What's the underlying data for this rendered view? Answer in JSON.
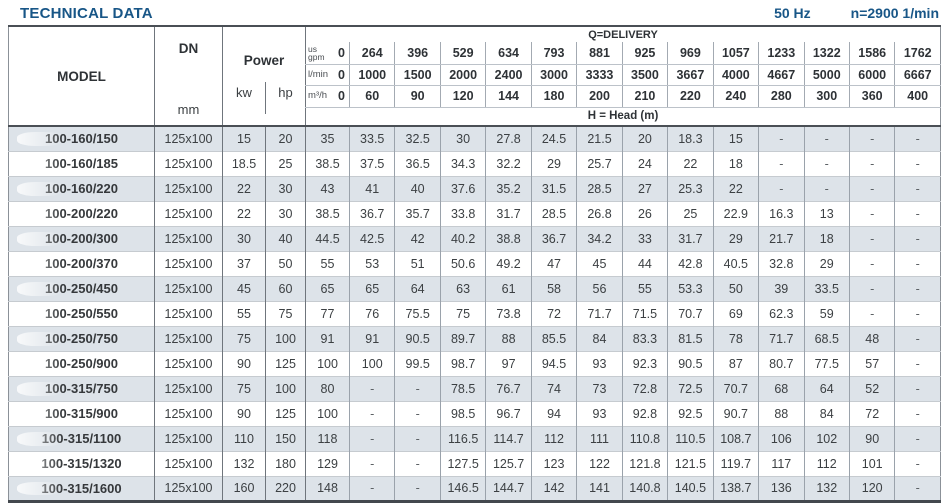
{
  "page": {
    "title": "TECHNICAL DATA",
    "frequency": "50 Hz",
    "speed": "n=2900 1/min"
  },
  "colors": {
    "accent": "#185687",
    "stripe": "#dde3e9"
  },
  "table": {
    "model_header": "MODEL",
    "dn_header": "DN",
    "dn_unit": "mm",
    "power_header": "Power",
    "power_kw": "kw",
    "power_hp": "hp",
    "delivery_caption": "Q=DELIVERY",
    "head_caption": "H = Head (m)",
    "unit_rows": [
      {
        "label": "us\ngpm",
        "values": [
          "0",
          "264",
          "396",
          "529",
          "634",
          "793",
          "881",
          "925",
          "969",
          "1057",
          "1233",
          "1322",
          "1586",
          "1762"
        ]
      },
      {
        "label": "l/min",
        "values": [
          "0",
          "1000",
          "1500",
          "2000",
          "2400",
          "3000",
          "3333",
          "3500",
          "3667",
          "4000",
          "4667",
          "5000",
          "6000",
          "6667"
        ]
      },
      {
        "label": "m³/h",
        "values": [
          "0",
          "60",
          "90",
          "120",
          "144",
          "180",
          "200",
          "210",
          "220",
          "240",
          "280",
          "300",
          "360",
          "400"
        ]
      }
    ],
    "rows": [
      {
        "model": "100-160/150",
        "dn": "125x100",
        "kw": "15",
        "hp": "20",
        "head": [
          "35",
          "33.5",
          "32.5",
          "30",
          "27.8",
          "24.5",
          "21.5",
          "20",
          "18.3",
          "15",
          "-",
          "-",
          "-",
          "-"
        ]
      },
      {
        "model": "100-160/185",
        "dn": "125x100",
        "kw": "18.5",
        "hp": "25",
        "head": [
          "38.5",
          "37.5",
          "36.5",
          "34.3",
          "32.2",
          "29",
          "25.7",
          "24",
          "22",
          "18",
          "-",
          "-",
          "-",
          "-"
        ]
      },
      {
        "model": "100-160/220",
        "dn": "125x100",
        "kw": "22",
        "hp": "30",
        "head": [
          "43",
          "41",
          "40",
          "37.6",
          "35.2",
          "31.5",
          "28.5",
          "27",
          "25.3",
          "22",
          "-",
          "-",
          "-",
          "-"
        ]
      },
      {
        "model": "100-200/220",
        "dn": "125x100",
        "kw": "22",
        "hp": "30",
        "head": [
          "38.5",
          "36.7",
          "35.7",
          "33.8",
          "31.7",
          "28.5",
          "26.8",
          "26",
          "25",
          "22.9",
          "16.3",
          "13",
          "-",
          "-"
        ]
      },
      {
        "model": "100-200/300",
        "dn": "125x100",
        "kw": "30",
        "hp": "40",
        "head": [
          "44.5",
          "42.5",
          "42",
          "40.2",
          "38.8",
          "36.7",
          "34.2",
          "33",
          "31.7",
          "29",
          "21.7",
          "18",
          "-",
          "-"
        ]
      },
      {
        "model": "100-200/370",
        "dn": "125x100",
        "kw": "37",
        "hp": "50",
        "head": [
          "55",
          "53",
          "51",
          "50.6",
          "49.2",
          "47",
          "45",
          "44",
          "42.8",
          "40.5",
          "32.8",
          "29",
          "-",
          "-"
        ]
      },
      {
        "model": "100-250/450",
        "dn": "125x100",
        "kw": "45",
        "hp": "60",
        "head": [
          "65",
          "65",
          "64",
          "63",
          "61",
          "58",
          "56",
          "55",
          "53.3",
          "50",
          "39",
          "33.5",
          "-",
          "-"
        ]
      },
      {
        "model": "100-250/550",
        "dn": "125x100",
        "kw": "55",
        "hp": "75",
        "head": [
          "77",
          "76",
          "75.5",
          "75",
          "73.8",
          "72",
          "71.7",
          "71.5",
          "70.7",
          "69",
          "62.3",
          "59",
          "-",
          "-"
        ]
      },
      {
        "model": "100-250/750",
        "dn": "125x100",
        "kw": "75",
        "hp": "100",
        "head": [
          "91",
          "91",
          "90.5",
          "89.7",
          "88",
          "85.5",
          "84",
          "83.3",
          "81.5",
          "78",
          "71.7",
          "68.5",
          "48",
          "-"
        ]
      },
      {
        "model": "100-250/900",
        "dn": "125x100",
        "kw": "90",
        "hp": "125",
        "head": [
          "100",
          "100",
          "99.5",
          "98.7",
          "97",
          "94.5",
          "93",
          "92.3",
          "90.5",
          "87",
          "80.7",
          "77.5",
          "57",
          "-"
        ]
      },
      {
        "model": "100-315/750",
        "dn": "125x100",
        "kw": "75",
        "hp": "100",
        "head": [
          "80",
          "-",
          "-",
          "78.5",
          "76.7",
          "74",
          "73",
          "72.8",
          "72.5",
          "70.7",
          "68",
          "64",
          "52",
          "-"
        ]
      },
      {
        "model": "100-315/900",
        "dn": "125x100",
        "kw": "90",
        "hp": "125",
        "head": [
          "100",
          "-",
          "-",
          "98.5",
          "96.7",
          "94",
          "93",
          "92.8",
          "92.5",
          "90.7",
          "88",
          "84",
          "72",
          "-"
        ]
      },
      {
        "model": "100-315/1100",
        "dn": "125x100",
        "kw": "110",
        "hp": "150",
        "head": [
          "118",
          "-",
          "-",
          "116.5",
          "114.7",
          "112",
          "111",
          "110.8",
          "110.5",
          "108.7",
          "106",
          "102",
          "90",
          "-"
        ]
      },
      {
        "model": "100-315/1320",
        "dn": "125x100",
        "kw": "132",
        "hp": "180",
        "head": [
          "129",
          "-",
          "-",
          "127.5",
          "125.7",
          "123",
          "122",
          "121.8",
          "121.5",
          "119.7",
          "117",
          "112",
          "101",
          "-"
        ]
      },
      {
        "model": "100-315/1600",
        "dn": "125x100",
        "kw": "160",
        "hp": "220",
        "head": [
          "148",
          "-",
          "-",
          "146.5",
          "144.7",
          "142",
          "141",
          "140.8",
          "140.5",
          "138.7",
          "136",
          "132",
          "120",
          "-"
        ]
      }
    ]
  }
}
